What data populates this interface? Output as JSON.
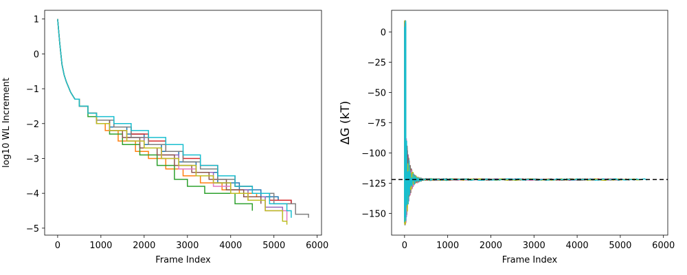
{
  "colors": [
    "#1f77b4",
    "#ff7f0e",
    "#2ca02c",
    "#d62728",
    "#9467bd",
    "#8c564b",
    "#e377c2",
    "#7f7f7f",
    "#bcbd22",
    "#17becf"
  ],
  "chart_data": [
    {
      "type": "line",
      "xlabel": "Frame Index",
      "ylabel": "log10 WL Increment",
      "xlim": [
        -300,
        6100
      ],
      "ylim": [
        -5.2,
        1.25
      ],
      "xticks": [
        0,
        1000,
        2000,
        3000,
        4000,
        5000,
        6000
      ],
      "yticks": [
        1,
        0,
        -1,
        -2,
        -3,
        -4,
        -5
      ],
      "step": true,
      "series": [
        {
          "x": [
            0,
            50,
            100,
            150,
            200,
            300,
            400,
            500,
            700,
            900,
            1200,
            1600,
            2000,
            2400,
            2800,
            3200,
            3700,
            4200,
            4700,
            5100,
            5400
          ],
          "y": [
            1.0,
            0.3,
            -0.3,
            -0.6,
            -0.8,
            -1.1,
            -1.3,
            -1.5,
            -1.7,
            -1.9,
            -2.1,
            -2.3,
            -2.6,
            -2.8,
            -3.1,
            -3.4,
            -3.7,
            -3.9,
            -4.1,
            -4.2,
            -4.3
          ]
        },
        {
          "x": [
            0,
            50,
            100,
            150,
            200,
            300,
            400,
            500,
            700,
            900,
            1100,
            1400,
            1800,
            2100,
            2500,
            2900,
            3300,
            3800,
            4200,
            4600
          ],
          "y": [
            1.0,
            0.3,
            -0.3,
            -0.6,
            -0.8,
            -1.1,
            -1.3,
            -1.5,
            -1.7,
            -2.0,
            -2.2,
            -2.5,
            -2.8,
            -3.0,
            -3.3,
            -3.5,
            -3.7,
            -3.9,
            -4.0,
            -4.1
          ]
        },
        {
          "x": [
            0,
            50,
            100,
            150,
            200,
            300,
            400,
            500,
            700,
            900,
            1200,
            1500,
            1900,
            2300,
            2700,
            3000,
            3400,
            3700,
            4100,
            4500
          ],
          "y": [
            1.0,
            0.3,
            -0.3,
            -0.6,
            -0.8,
            -1.1,
            -1.3,
            -1.5,
            -1.8,
            -2.0,
            -2.3,
            -2.6,
            -2.9,
            -3.2,
            -3.6,
            -3.8,
            -4.0,
            -4.0,
            -4.3,
            -4.5
          ]
        },
        {
          "x": [
            0,
            50,
            100,
            150,
            200,
            300,
            400,
            500,
            700,
            900,
            1300,
            1700,
            2100,
            2500,
            2900,
            3300,
            3700,
            4100,
            4500,
            4900,
            5400
          ],
          "y": [
            1.0,
            0.3,
            -0.3,
            -0.6,
            -0.8,
            -1.1,
            -1.3,
            -1.5,
            -1.7,
            -1.9,
            -2.1,
            -2.3,
            -2.5,
            -2.8,
            -3.0,
            -3.2,
            -3.5,
            -3.8,
            -4.0,
            -4.2,
            -4.3
          ]
        },
        {
          "x": [
            0,
            50,
            100,
            150,
            200,
            300,
            400,
            500,
            700,
            900,
            1200,
            1600,
            2000,
            2400,
            2800,
            3200,
            3600,
            4000,
            4400,
            4800,
            5200
          ],
          "y": [
            1.0,
            0.3,
            -0.3,
            -0.6,
            -0.8,
            -1.1,
            -1.3,
            -1.5,
            -1.7,
            -2.0,
            -2.2,
            -2.4,
            -2.7,
            -2.9,
            -3.2,
            -3.4,
            -3.7,
            -3.9,
            -4.1,
            -4.4,
            -4.7
          ]
        },
        {
          "x": [
            0,
            50,
            100,
            150,
            200,
            300,
            400,
            500,
            700,
            900,
            1200,
            1500,
            1900,
            2300,
            2700,
            3100,
            3500,
            3900,
            4300,
            4700
          ],
          "y": [
            1.0,
            0.3,
            -0.3,
            -0.6,
            -0.8,
            -1.1,
            -1.3,
            -1.5,
            -1.7,
            -1.9,
            -2.2,
            -2.4,
            -2.7,
            -2.9,
            -3.2,
            -3.4,
            -3.6,
            -3.9,
            -4.1,
            -4.3
          ]
        },
        {
          "x": [
            0,
            50,
            100,
            150,
            200,
            300,
            400,
            500,
            700,
            900,
            1200,
            1600,
            2000,
            2400,
            2800,
            3200,
            3600,
            4000,
            4400,
            4800,
            5300
          ],
          "y": [
            1.0,
            0.3,
            -0.3,
            -0.6,
            -0.8,
            -1.1,
            -1.3,
            -1.5,
            -1.7,
            -2.0,
            -2.2,
            -2.5,
            -2.7,
            -3.0,
            -3.3,
            -3.5,
            -3.8,
            -4.0,
            -4.2,
            -4.5,
            -4.8
          ]
        },
        {
          "x": [
            0,
            50,
            100,
            150,
            200,
            300,
            400,
            500,
            700,
            900,
            1300,
            1700,
            2100,
            2500,
            2900,
            3300,
            3700,
            4100,
            4500,
            5000,
            5500,
            5800
          ],
          "y": [
            1.0,
            0.3,
            -0.3,
            -0.6,
            -0.8,
            -1.1,
            -1.3,
            -1.5,
            -1.7,
            -1.9,
            -2.1,
            -2.4,
            -2.6,
            -2.8,
            -3.1,
            -3.3,
            -3.6,
            -3.8,
            -4.0,
            -4.3,
            -4.6,
            -4.7
          ]
        },
        {
          "x": [
            0,
            50,
            100,
            150,
            200,
            300,
            400,
            500,
            700,
            900,
            1200,
            1600,
            2000,
            2400,
            2800,
            3200,
            3600,
            4000,
            4400,
            4800,
            5200,
            5300
          ],
          "y": [
            1.0,
            0.3,
            -0.3,
            -0.6,
            -0.8,
            -1.1,
            -1.3,
            -1.5,
            -1.7,
            -2.0,
            -2.2,
            -2.5,
            -2.7,
            -3.0,
            -3.2,
            -3.5,
            -3.7,
            -4.0,
            -4.2,
            -4.5,
            -4.8,
            -4.9
          ]
        },
        {
          "x": [
            0,
            50,
            100,
            150,
            200,
            300,
            400,
            500,
            700,
            900,
            1300,
            1700,
            2100,
            2500,
            2900,
            3300,
            3700,
            4100,
            4500,
            4900,
            5300,
            5400
          ],
          "y": [
            1.0,
            0.3,
            -0.3,
            -0.6,
            -0.8,
            -1.1,
            -1.3,
            -1.5,
            -1.7,
            -1.8,
            -2.0,
            -2.2,
            -2.4,
            -2.6,
            -2.9,
            -3.2,
            -3.5,
            -3.8,
            -4.0,
            -4.3,
            -4.5,
            -4.7
          ]
        }
      ]
    },
    {
      "type": "line",
      "xlabel": "Frame Index",
      "ylabel": "ΔG (kT)",
      "xlim": [
        -300,
        6100
      ],
      "ylim": [
        -168,
        18
      ],
      "xticks": [
        0,
        1000,
        2000,
        3000,
        4000,
        5000,
        6000
      ],
      "yticks": [
        0,
        -25,
        -50,
        -75,
        -100,
        -125,
        -150
      ],
      "reference_line": {
        "y": -122,
        "style": "dashed",
        "color": "#000000"
      },
      "converged_value": -122,
      "spike_min": -160,
      "spike_max": 10,
      "series_count": 10
    }
  ]
}
